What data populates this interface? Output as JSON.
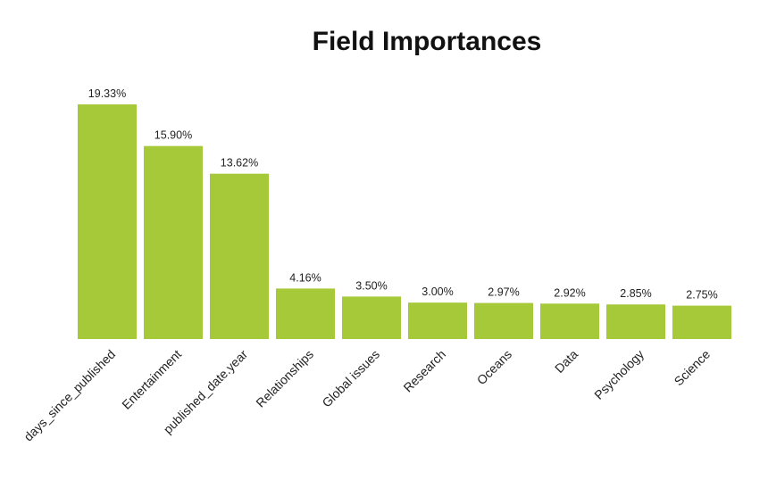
{
  "chart_data": {
    "type": "bar",
    "title": "Field Importances",
    "xlabel": "",
    "ylabel": "",
    "categories": [
      "days_since_published",
      "Entertainment",
      "published_date.year",
      "Relationships",
      "Global issues",
      "Research",
      "Oceans",
      "Data",
      "Psychology",
      "Science"
    ],
    "values": [
      19.33,
      15.9,
      13.62,
      4.16,
      3.5,
      3.0,
      2.97,
      2.92,
      2.85,
      2.75
    ],
    "value_labels": [
      "19.33%",
      "15.90%",
      "13.62%",
      "4.16%",
      "3.50%",
      "3.00%",
      "2.97%",
      "2.92%",
      "2.85%",
      "2.75%"
    ],
    "ylim": [
      0,
      19.33
    ],
    "grid": false,
    "bar_color": "#a6c93a"
  }
}
